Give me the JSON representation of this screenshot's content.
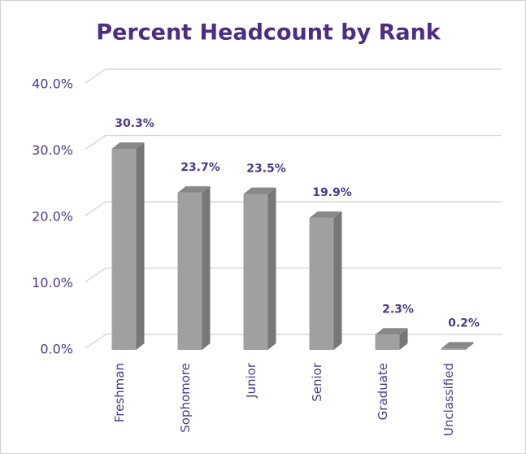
{
  "chart_data": {
    "type": "bar3d",
    "title": "Percent Headcount by Rank",
    "categories": [
      "Freshman",
      "Sophomore",
      "Junior",
      "Senior",
      "Graduate",
      "Unclassified"
    ],
    "values": [
      30.3,
      23.7,
      23.5,
      19.9,
      2.3,
      0.2
    ],
    "value_labels": [
      "30.3%",
      "23.7%",
      "23.5%",
      "19.9%",
      "2.3%",
      "0.2%"
    ],
    "color": "#a0a0a0",
    "ylim": [
      0,
      40
    ],
    "yticks": [
      {
        "value": 0,
        "label": "0.0%"
      },
      {
        "value": 10,
        "label": "10.0%"
      },
      {
        "value": 20,
        "label": "20.0%"
      },
      {
        "value": 30,
        "label": "30.0%"
      },
      {
        "value": 40,
        "label": "40.0%"
      }
    ],
    "grid": true
  }
}
